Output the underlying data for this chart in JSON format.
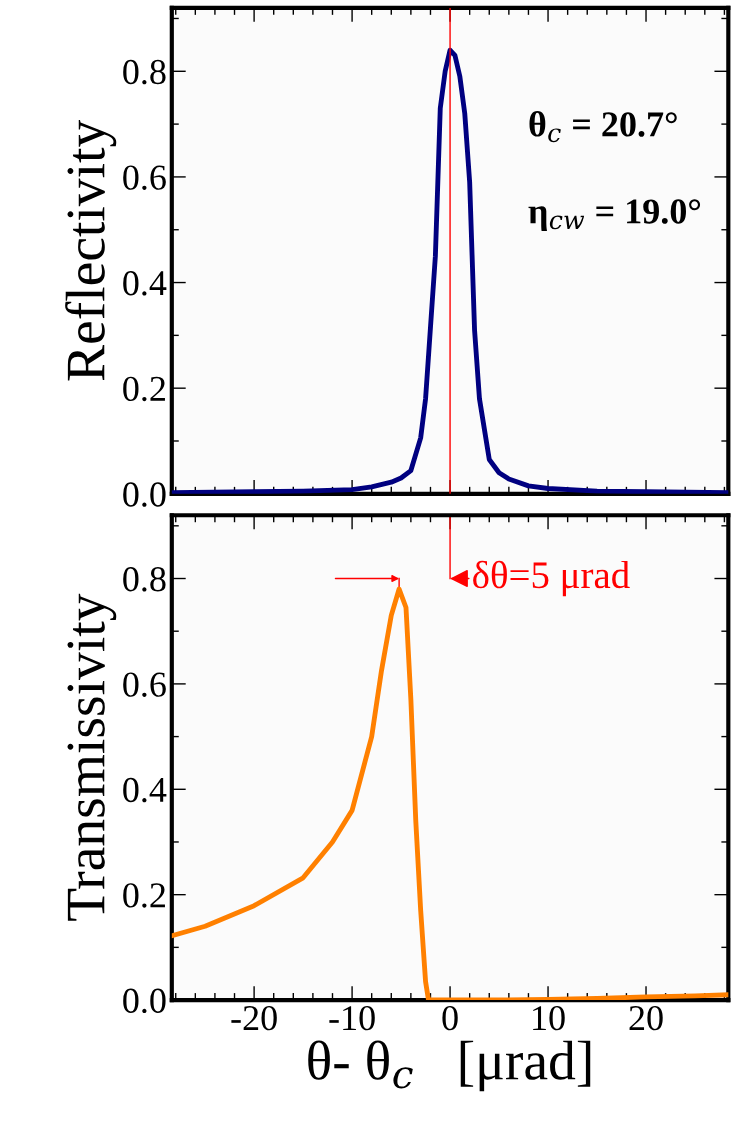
{
  "chart_data": [
    {
      "type": "line",
      "ylabel": "Reflectivity",
      "xlim": [
        -28.4,
        28.4
      ],
      "xticks": [
        -20,
        -10,
        0,
        10,
        20
      ],
      "ylim": [
        0,
        0.92
      ],
      "yticks": [
        {
          "value": 0,
          "label": "0.0"
        },
        {
          "value": 0.2,
          "label": "0.2"
        },
        {
          "value": 0.4,
          "label": "0.4"
        },
        {
          "value": 0.6,
          "label": "0.6"
        },
        {
          "value": 0.8,
          "label": "0.8"
        }
      ],
      "tick_labels": "y",
      "grid": false,
      "marker": "none",
      "line_style": "solid",
      "annotations": [
        "θ$_{c}$ = 20.7°",
        "η$_{cw}$ = 19.0°"
      ],
      "ref_lines": [
        {
          "axis": "x",
          "value": 0,
          "color": "#ff0000",
          "line_style": "solid"
        }
      ],
      "series": [
        {
          "color": "#000080",
          "x": [
            -28.4,
            -20,
            -15,
            -10,
            -8,
            -6,
            -5,
            -4,
            -3,
            -2.5,
            -2,
            -1.5,
            -1,
            -0.5,
            0,
            0.5,
            1,
            1.5,
            2,
            2.5,
            3,
            4,
            5,
            6,
            8,
            10,
            15,
            20,
            28.4
          ],
          "values": [
            0.002,
            0.004,
            0.005,
            0.008,
            0.013,
            0.022,
            0.03,
            0.044,
            0.106,
            0.18,
            0.315,
            0.45,
            0.73,
            0.8,
            0.84,
            0.83,
            0.79,
            0.72,
            0.59,
            0.31,
            0.18,
            0.065,
            0.04,
            0.028,
            0.015,
            0.01,
            0.005,
            0.004,
            0.002
          ]
        }
      ]
    },
    {
      "type": "line",
      "ylabel": "Transmissivity",
      "xlabel": "θ- θ$_{c}$   [μrad]",
      "xlim": [
        -28.4,
        28.4
      ],
      "xticks": [
        -20,
        -10,
        0,
        10,
        20
      ],
      "ylim": [
        0,
        0.92
      ],
      "yticks": [
        {
          "value": 0,
          "label": "0.0"
        },
        {
          "value": 0.2,
          "label": "0.2"
        },
        {
          "value": 0.4,
          "label": "0.4"
        },
        {
          "value": 0.6,
          "label": "0.6"
        },
        {
          "value": 0.8,
          "label": "0.8"
        }
      ],
      "grid": false,
      "marker": "none",
      "line_style": "solid",
      "annotations": [
        "δθ=5 μrad"
      ],
      "ref_lines": [
        {
          "axis": "x",
          "value": 0,
          "color": "#ff0000",
          "line_style": "solid"
        }
      ],
      "series": [
        {
          "color": "#ff8000",
          "x": [
            -28.4,
            -25,
            -20,
            -15,
            -12,
            -10,
            -8,
            -7,
            -6,
            -5.2,
            -4.5,
            -4,
            -3.5,
            -3,
            -2.5,
            -2.2,
            0,
            5,
            10,
            15,
            20,
            25,
            28.4
          ],
          "values": [
            0.122,
            0.14,
            0.179,
            0.232,
            0.3,
            0.36,
            0.5,
            0.625,
            0.73,
            0.78,
            0.745,
            0.57,
            0.34,
            0.17,
            0.035,
            0.0,
            0.0,
            0.0,
            0.001,
            0.003,
            0.006,
            0.008,
            0.01
          ]
        }
      ]
    }
  ]
}
